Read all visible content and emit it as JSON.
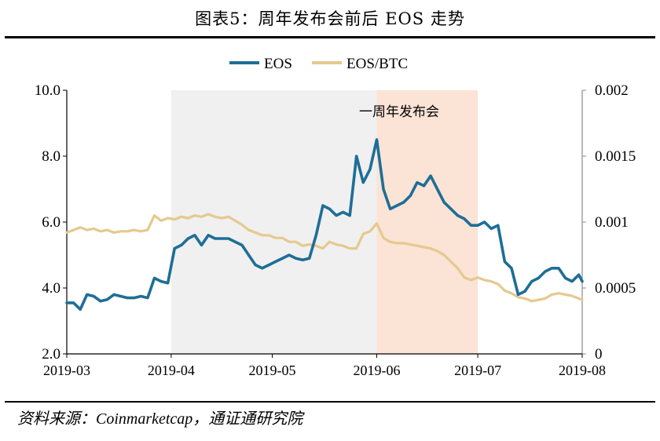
{
  "title": "图表5：周年发布会前后 EOS 走势",
  "source": "资料来源：Coinmarketcap，通证通研究院",
  "colors": {
    "eos": "#1e6e96",
    "eos_btc": "#e5c98e",
    "shade_gray": "#f0f0f0",
    "shade_orange": "#fbe3d6",
    "axis": "#000000"
  },
  "chart_data": {
    "type": "line",
    "title": "",
    "xlabel": "",
    "ylabel_left": "",
    "ylabel_right": "",
    "x_ticks": [
      "2019-03",
      "2019-04",
      "2019-05",
      "2019-06",
      "2019-07",
      "2019-08"
    ],
    "y_left": {
      "range": [
        2.0,
        10.0
      ],
      "ticks": [
        "2.0",
        "4.0",
        "6.0",
        "8.0",
        "10.0"
      ]
    },
    "y_right": {
      "range": [
        0,
        0.002
      ],
      "ticks": [
        "0",
        "0.0005",
        "0.001",
        "0.0015",
        "0.002"
      ]
    },
    "legend": {
      "position": "top",
      "entries": [
        "EOS",
        "EOS/BTC"
      ]
    },
    "annotation": "一周年发布会",
    "shaded_regions": [
      {
        "start": "2019-04-01",
        "end": "2019-06-01",
        "color": "gray"
      },
      {
        "start": "2019-06-01",
        "end": "2019-07-01",
        "color": "orange"
      }
    ],
    "x": [
      "2019-03-01",
      "2019-03-03",
      "2019-03-05",
      "2019-03-07",
      "2019-03-09",
      "2019-03-11",
      "2019-03-13",
      "2019-03-15",
      "2019-03-17",
      "2019-03-19",
      "2019-03-21",
      "2019-03-23",
      "2019-03-25",
      "2019-03-27",
      "2019-03-29",
      "2019-03-31",
      "2019-04-02",
      "2019-04-04",
      "2019-04-06",
      "2019-04-08",
      "2019-04-10",
      "2019-04-12",
      "2019-04-14",
      "2019-04-16",
      "2019-04-18",
      "2019-04-20",
      "2019-04-22",
      "2019-04-24",
      "2019-04-26",
      "2019-04-28",
      "2019-04-30",
      "2019-05-02",
      "2019-05-04",
      "2019-05-06",
      "2019-05-08",
      "2019-05-10",
      "2019-05-12",
      "2019-05-14",
      "2019-05-16",
      "2019-05-18",
      "2019-05-20",
      "2019-05-22",
      "2019-05-24",
      "2019-05-26",
      "2019-05-28",
      "2019-05-30",
      "2019-06-01",
      "2019-06-03",
      "2019-06-05",
      "2019-06-07",
      "2019-06-09",
      "2019-06-11",
      "2019-06-13",
      "2019-06-15",
      "2019-06-17",
      "2019-06-19",
      "2019-06-21",
      "2019-06-23",
      "2019-06-25",
      "2019-06-27",
      "2019-06-29",
      "2019-07-01",
      "2019-07-03",
      "2019-07-05",
      "2019-07-07",
      "2019-07-09",
      "2019-07-11",
      "2019-07-13",
      "2019-07-15",
      "2019-07-17",
      "2019-07-19",
      "2019-07-21",
      "2019-07-23",
      "2019-07-25",
      "2019-07-27",
      "2019-07-29",
      "2019-07-31",
      "2019-08-01"
    ],
    "series": [
      {
        "name": "EOS",
        "axis": "left",
        "values": [
          3.55,
          3.55,
          3.35,
          3.8,
          3.75,
          3.6,
          3.65,
          3.8,
          3.75,
          3.7,
          3.7,
          3.75,
          3.7,
          4.3,
          4.2,
          4.15,
          5.2,
          5.3,
          5.5,
          5.6,
          5.3,
          5.6,
          5.5,
          5.5,
          5.5,
          5.4,
          5.3,
          5.0,
          4.7,
          4.6,
          4.7,
          4.8,
          4.9,
          5.0,
          4.9,
          4.85,
          4.9,
          5.6,
          6.5,
          6.4,
          6.2,
          6.3,
          6.2,
          8.0,
          7.2,
          7.6,
          8.5,
          7.0,
          6.4,
          6.5,
          6.6,
          6.8,
          7.2,
          7.1,
          7.4,
          7.0,
          6.6,
          6.4,
          6.2,
          6.1,
          5.9,
          5.9,
          6.0,
          5.8,
          5.9,
          4.8,
          4.6,
          3.8,
          3.9,
          4.2,
          4.3,
          4.5,
          4.6,
          4.6,
          4.3,
          4.2,
          4.4,
          4.2
        ]
      },
      {
        "name": "EOS/BTC",
        "axis": "right",
        "values": [
          0.00092,
          0.00094,
          0.00096,
          0.00094,
          0.00095,
          0.00093,
          0.00094,
          0.00092,
          0.00093,
          0.00093,
          0.00094,
          0.00093,
          0.00094,
          0.00105,
          0.00101,
          0.00103,
          0.00102,
          0.00104,
          0.00103,
          0.00105,
          0.00104,
          0.00106,
          0.00104,
          0.00103,
          0.00104,
          0.00101,
          0.00098,
          0.00094,
          0.00092,
          0.0009,
          0.0009,
          0.00088,
          0.00088,
          0.00085,
          0.00085,
          0.00082,
          0.00083,
          0.00082,
          0.0008,
          0.00085,
          0.00083,
          0.00082,
          0.0008,
          0.0008,
          0.00091,
          0.00093,
          0.00099,
          0.00088,
          0.00085,
          0.00084,
          0.00084,
          0.00083,
          0.00082,
          0.00081,
          0.0008,
          0.00078,
          0.00075,
          0.0007,
          0.00065,
          0.00058,
          0.00056,
          0.00058,
          0.00056,
          0.00055,
          0.00053,
          0.00048,
          0.00046,
          0.00043,
          0.00042,
          0.0004,
          0.00041,
          0.00042,
          0.00045,
          0.00046,
          0.00045,
          0.00044,
          0.00042,
          0.00041
        ]
      }
    ]
  }
}
